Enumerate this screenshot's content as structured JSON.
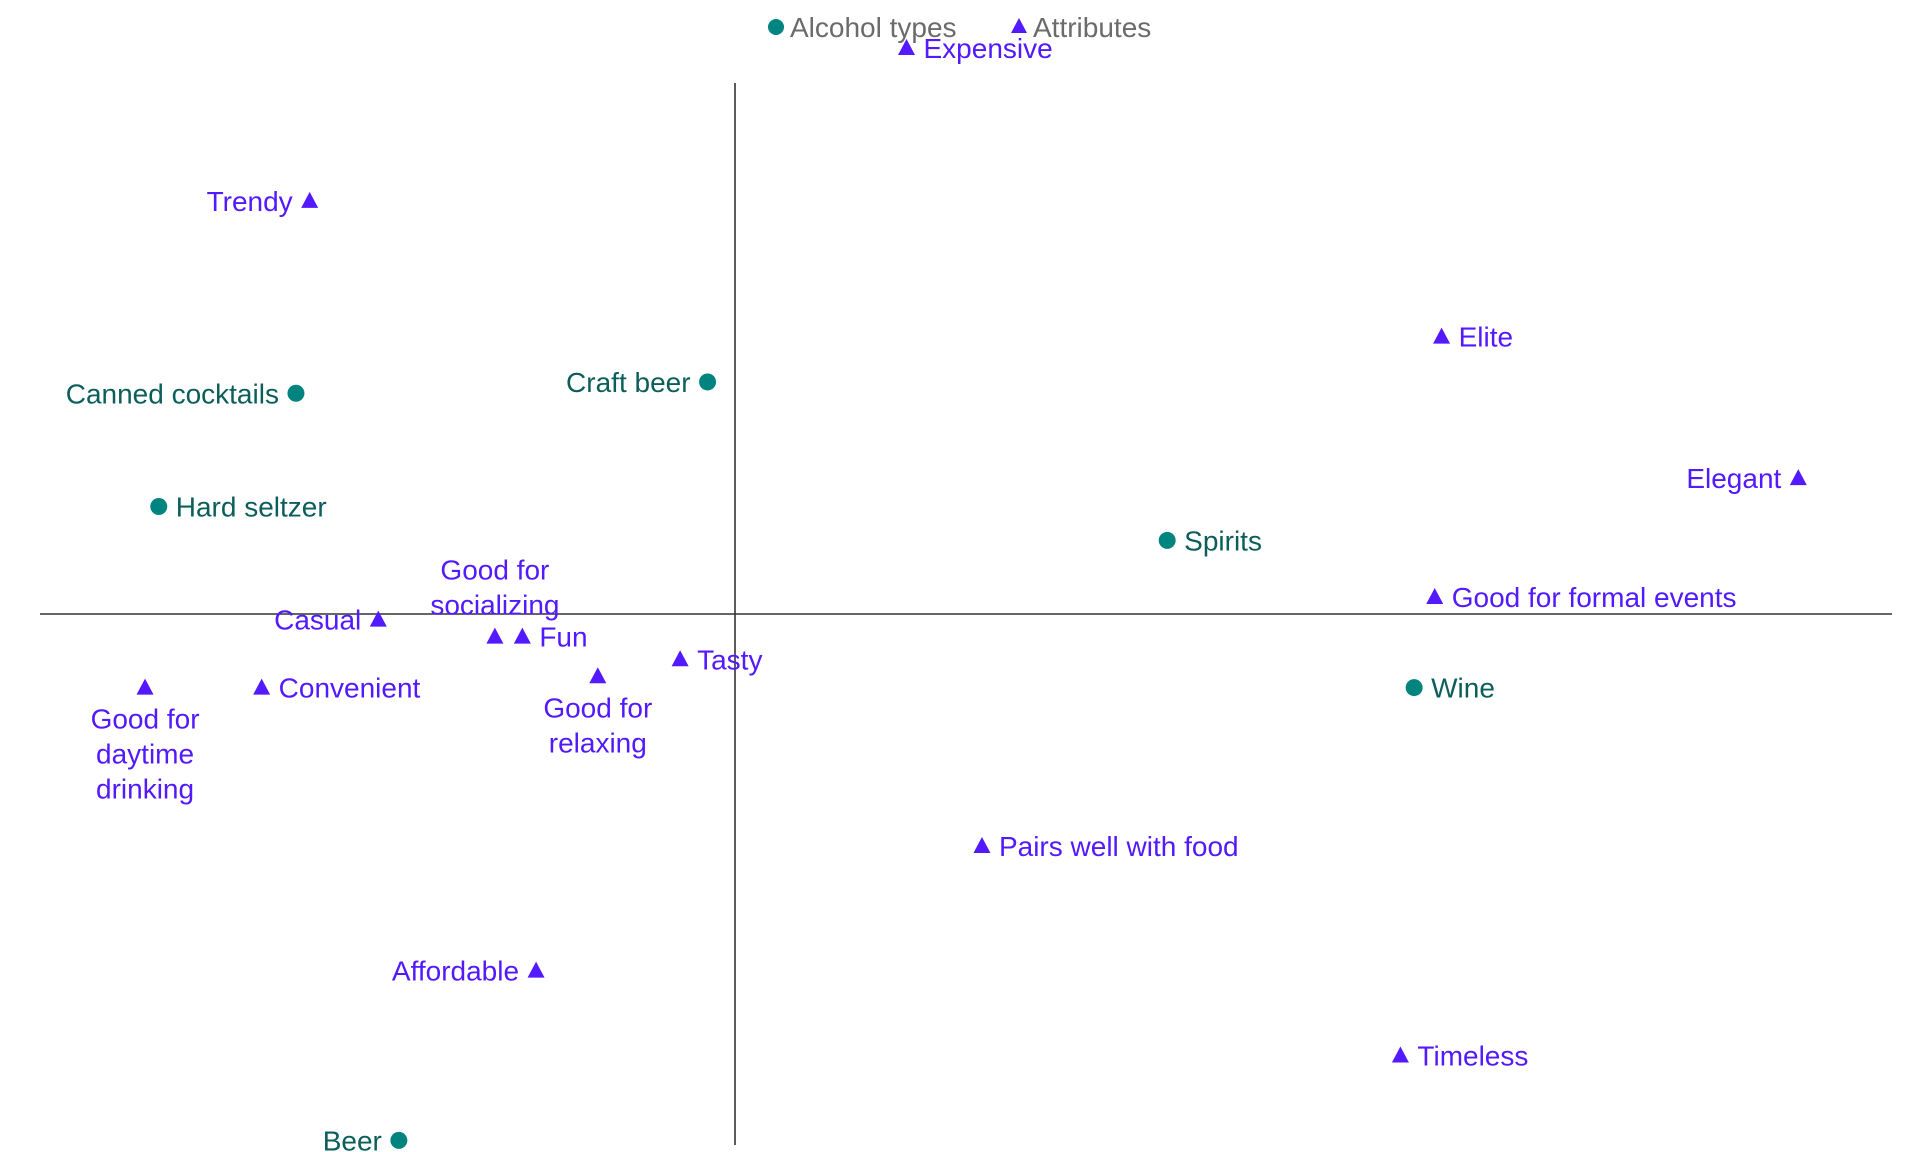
{
  "colors": {
    "alcohol": "#00847f",
    "alcohol_text": "#0b5e5a",
    "attribute": "#5319ff",
    "axis": "#333333",
    "legend_text": "#6b6b6b"
  },
  "legend": {
    "alcohol_label": "Alcohol types",
    "attribute_label": "Attributes"
  },
  "chart_data": {
    "type": "scatter",
    "title": "",
    "xlabel": "",
    "ylabel": "",
    "xlim": [
      -1,
      1.67
    ],
    "ylim": [
      -1,
      1.02
    ],
    "grid": false,
    "axes": "cross at origin",
    "legend_position": "top-center",
    "series": [
      {
        "name": "Alcohol types",
        "marker": "circle",
        "points": [
          {
            "label": "Canned cocktails",
            "x": -0.64,
            "y": 0.39
          },
          {
            "label": "Hard seltzer",
            "x": -0.84,
            "y": 0.19
          },
          {
            "label": "Craft beer",
            "x": -0.04,
            "y": 0.41
          },
          {
            "label": "Spirits",
            "x": 0.63,
            "y": 0.13
          },
          {
            "label": "Wine",
            "x": 0.99,
            "y": -0.13
          },
          {
            "label": "Beer",
            "x": -0.49,
            "y": -0.93
          }
        ]
      },
      {
        "name": "Attributes",
        "marker": "triangle",
        "points": [
          {
            "label": "Expensive",
            "x": 0.25,
            "y": 1.0
          },
          {
            "label": "Trendy",
            "x": -0.62,
            "y": 0.73
          },
          {
            "label": "Elite",
            "x": 1.03,
            "y": 0.49
          },
          {
            "label": "Elegant",
            "x": 1.55,
            "y": 0.24
          },
          {
            "label": "Good for formal events",
            "x": 1.02,
            "y": 0.03
          },
          {
            "label": "Good for socializing",
            "x": -0.35,
            "y": -0.04
          },
          {
            "label": "Casual",
            "x": -0.52,
            "y": -0.01
          },
          {
            "label": "Fun",
            "x": -0.31,
            "y": -0.04
          },
          {
            "label": "Tasty",
            "x": -0.08,
            "y": -0.08
          },
          {
            "label": "Good for relaxing",
            "x": -0.2,
            "y": -0.11
          },
          {
            "label": "Good for daytime drinking",
            "x": -0.86,
            "y": -0.13
          },
          {
            "label": "Convenient",
            "x": -0.69,
            "y": -0.13
          },
          {
            "label": "Pairs well with food",
            "x": 0.36,
            "y": -0.41
          },
          {
            "label": "Affordable",
            "x": -0.29,
            "y": -0.63
          },
          {
            "label": "Timeless",
            "x": 0.97,
            "y": -0.78
          }
        ]
      }
    ]
  }
}
